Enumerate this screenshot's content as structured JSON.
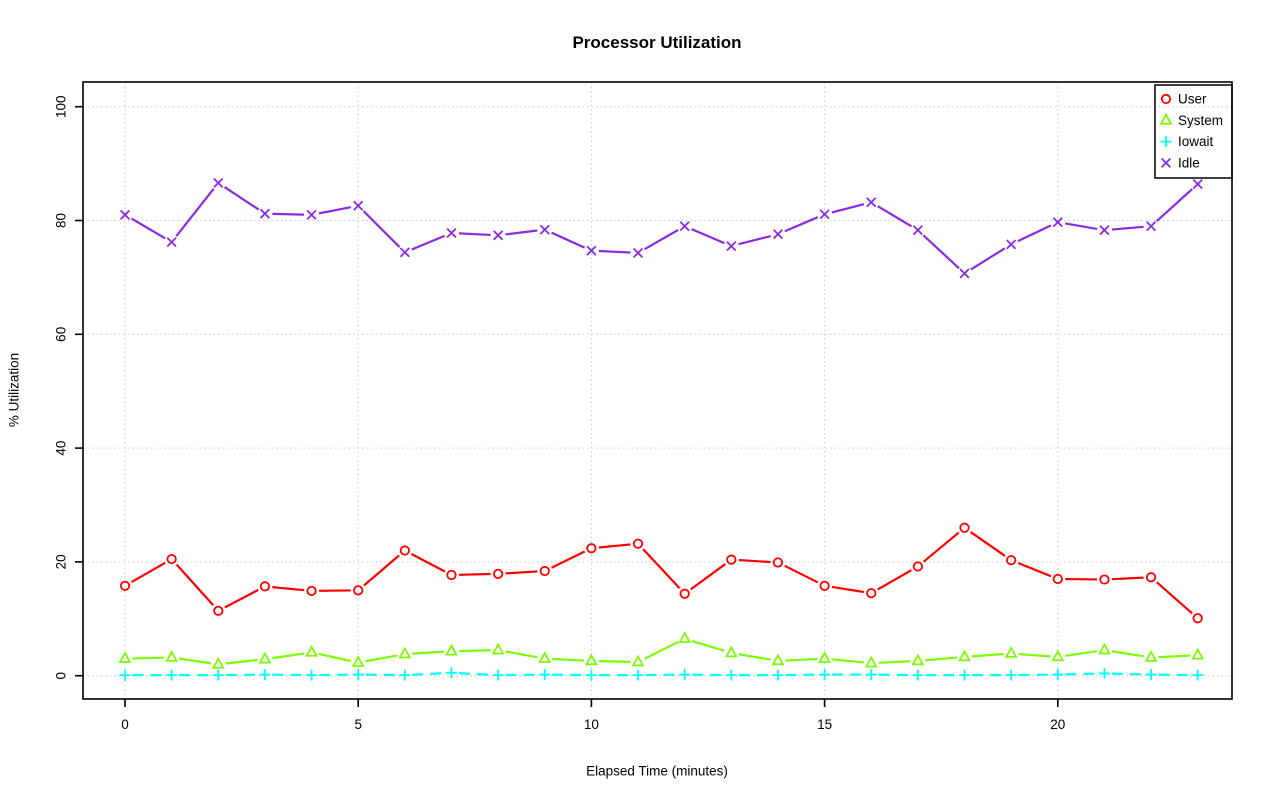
{
  "chart_data": {
    "type": "line",
    "title": "Processor Utilization",
    "xlabel": "Elapsed Time (minutes)",
    "ylabel": "% Utilization",
    "x": [
      0,
      1,
      2,
      3,
      4,
      5,
      6,
      7,
      8,
      9,
      10,
      11,
      12,
      13,
      14,
      15,
      16,
      17,
      18,
      19,
      20,
      21,
      22,
      23
    ],
    "xticks": [
      0,
      5,
      10,
      15,
      20
    ],
    "yticks": [
      0,
      20,
      40,
      60,
      80,
      100
    ],
    "xlim": [
      -0.9,
      23.9
    ],
    "ylim": [
      -3,
      103
    ],
    "grid": "dotted-lightgray",
    "legend": {
      "position": "top-right",
      "entries": [
        "User",
        "System",
        "Iowait",
        "Idle"
      ]
    },
    "series": [
      {
        "name": "User",
        "color": "#FF0000",
        "marker": "circle",
        "line": "solid",
        "values": [
          15.8,
          20.5,
          11.4,
          15.7,
          14.9,
          15.0,
          22.0,
          17.7,
          17.9,
          18.4,
          22.4,
          23.2,
          14.4,
          20.4,
          19.9,
          15.8,
          14.5,
          19.2,
          26.0,
          20.3,
          17.0,
          16.9,
          17.3,
          10.1
        ]
      },
      {
        "name": "System",
        "color": "#7CFC00",
        "marker": "triangle",
        "line": "solid",
        "values": [
          3.0,
          3.2,
          2.0,
          2.9,
          4.1,
          2.3,
          3.8,
          4.3,
          4.5,
          3.0,
          2.6,
          2.4,
          6.5,
          4.0,
          2.6,
          3.0,
          2.2,
          2.6,
          3.3,
          3.9,
          3.3,
          4.5,
          3.2,
          3.6
        ]
      },
      {
        "name": "Iowait",
        "color": "#00FFFF",
        "marker": "plus",
        "line": "dashed",
        "values": [
          0.1,
          0.1,
          0.1,
          0.2,
          0.1,
          0.2,
          0.1,
          0.5,
          0.1,
          0.2,
          0.1,
          0.1,
          0.2,
          0.1,
          0.1,
          0.2,
          0.2,
          0.1,
          0.1,
          0.1,
          0.2,
          0.4,
          0.2,
          0.1
        ]
      },
      {
        "name": "Idle",
        "color": "#8A2BE2",
        "marker": "x",
        "line": "solid",
        "values": [
          81.0,
          76.2,
          86.6,
          81.2,
          81.0,
          82.6,
          74.4,
          77.8,
          77.4,
          78.4,
          74.7,
          74.3,
          79.0,
          75.5,
          77.6,
          81.1,
          83.2,
          78.3,
          70.7,
          75.8,
          79.7,
          78.3,
          79.0,
          86.4
        ]
      }
    ]
  }
}
